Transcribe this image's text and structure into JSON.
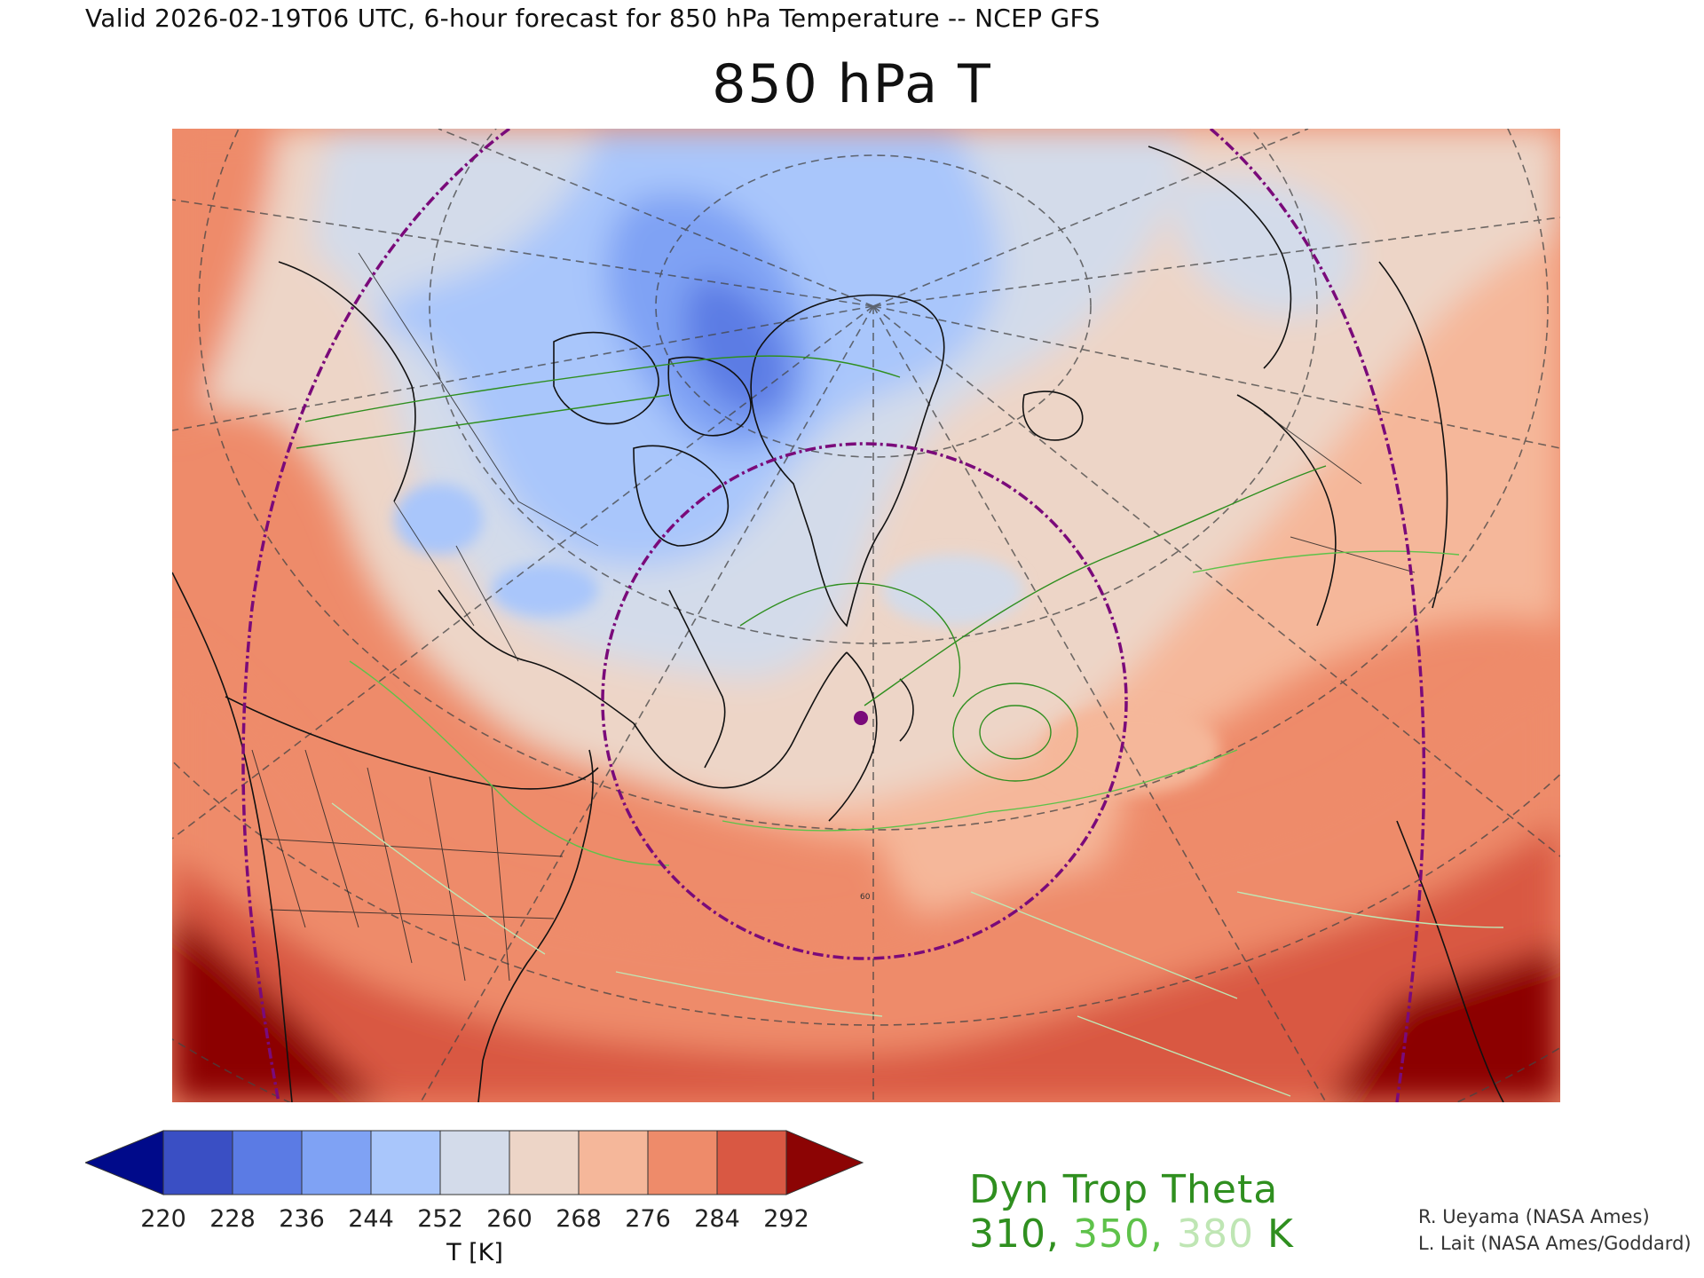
{
  "header": {
    "valid_line": "Valid 2026-02-19T06 UTC, 6-hour forecast for 850 hPa Temperature -- NCEP GFS",
    "title": "850 hPa T"
  },
  "colorbar": {
    "ticks": [
      "220",
      "228",
      "236",
      "244",
      "252",
      "260",
      "268",
      "276",
      "284",
      "292"
    ],
    "units": "T [K]",
    "colors": [
      "#3a4fc4",
      "#5b7be4",
      "#7fa2f4",
      "#a9c6fb",
      "#d3dbea",
      "#edd5c7",
      "#f5b79a",
      "#ee8b6a",
      "#d95843"
    ],
    "under_color": "#000a8a",
    "over_color": "#8c0404"
  },
  "map": {
    "grid_label": "60",
    "marker_color": "#7a0a7a"
  },
  "tropopause": {
    "title": "Dyn Trop Theta",
    "v1": "310",
    "sep1": ",",
    "v2": "350",
    "sep2": ",",
    "v3": "380",
    "unit": "K",
    "color_310": "#2f8f1f",
    "color_350": "#5ec24a",
    "color_380": "#bfe6b4"
  },
  "credits": {
    "line1": "R. Ueyama (NASA Ames)",
    "line2": "L. Lait (NASA Ames/Goddard)"
  }
}
